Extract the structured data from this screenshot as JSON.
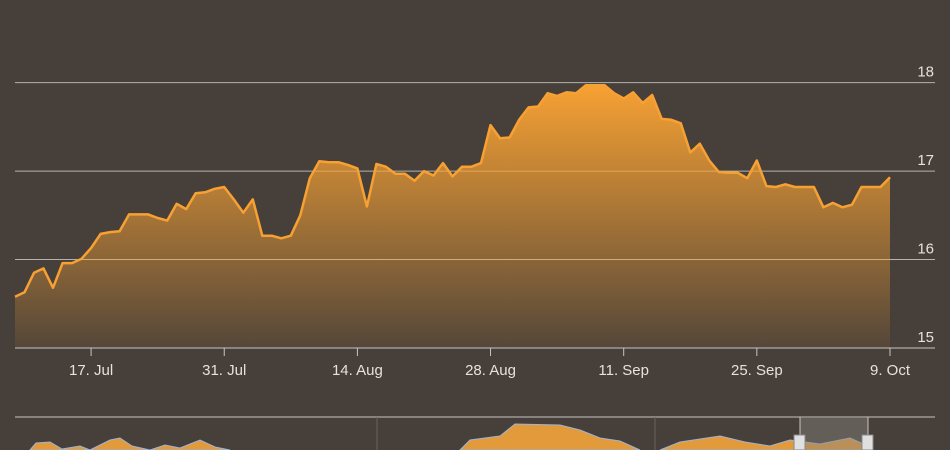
{
  "chart_data": {
    "type": "area",
    "x": [
      "9. Jul",
      "10. Jul",
      "11. Jul",
      "12. Jul",
      "13. Jul",
      "14. Jul",
      "15. Jul",
      "16. Jul",
      "17. Jul",
      "18. Jul",
      "19. Jul",
      "20. Jul",
      "21. Jul",
      "22. Jul",
      "23. Jul",
      "24. Jul",
      "25. Jul",
      "26. Jul",
      "27. Jul",
      "28. Jul",
      "29. Jul",
      "30. Jul",
      "31. Jul",
      "1. Aug",
      "2. Aug",
      "3. Aug",
      "4. Aug",
      "5. Aug",
      "6. Aug",
      "7. Aug",
      "8. Aug",
      "9. Aug",
      "10. Aug",
      "11. Aug",
      "12. Aug",
      "13. Aug",
      "14. Aug",
      "15. Aug",
      "16. Aug",
      "17. Aug",
      "18. Aug",
      "19. Aug",
      "20. Aug",
      "21. Aug",
      "22. Aug",
      "23. Aug",
      "24. Aug",
      "25. Aug",
      "26. Aug",
      "27. Aug",
      "28. Aug",
      "29. Aug",
      "30. Aug",
      "31. Aug",
      "1. Sep",
      "2. Sep",
      "3. Sep",
      "4. Sep",
      "5. Sep",
      "6. Sep",
      "7. Sep",
      "8. Sep",
      "9. Sep",
      "10. Sep",
      "11. Sep",
      "12. Sep",
      "13. Sep",
      "14. Sep",
      "15. Sep",
      "16. Sep",
      "17. Sep",
      "18. Sep",
      "19. Sep",
      "20. Sep",
      "21. Sep",
      "22. Sep",
      "23. Sep",
      "24. Sep",
      "25. Sep",
      "26. Sep",
      "27. Sep",
      "28. Sep",
      "29. Sep",
      "30. Sep",
      "1. Oct",
      "2. Oct",
      "3. Oct",
      "4. Oct",
      "5. Oct",
      "6. Oct",
      "7. Oct",
      "8. Oct",
      "9. Oct"
    ],
    "values": [
      15.58,
      15.63,
      15.85,
      15.9,
      15.68,
      15.96,
      15.96,
      16.01,
      16.13,
      16.29,
      16.31,
      16.32,
      16.51,
      16.51,
      16.51,
      16.47,
      16.44,
      16.63,
      16.57,
      16.75,
      16.76,
      16.8,
      16.82,
      16.68,
      16.53,
      16.68,
      16.27,
      16.27,
      16.24,
      16.27,
      16.5,
      16.92,
      17.11,
      17.1,
      17.1,
      17.07,
      17.03,
      16.6,
      17.08,
      17.05,
      16.97,
      16.97,
      16.89,
      17.0,
      16.95,
      17.09,
      16.94,
      17.05,
      17.05,
      17.09,
      17.52,
      17.37,
      17.38,
      17.58,
      17.72,
      17.73,
      17.88,
      17.85,
      17.89,
      17.88,
      17.97,
      17.97,
      17.97,
      17.88,
      17.82,
      17.89,
      17.77,
      17.86,
      17.59,
      17.58,
      17.54,
      17.21,
      17.31,
      17.12,
      16.99,
      16.98,
      16.98,
      16.92,
      17.12,
      16.83,
      16.82,
      16.85,
      16.82,
      16.82,
      16.82,
      16.59,
      16.64,
      16.59,
      16.62,
      16.82,
      16.82,
      16.82,
      16.93
    ],
    "color": "#f7a133",
    "xticks": [
      "17. Jul",
      "31. Jul",
      "14. Aug",
      "28. Aug",
      "11. Sep",
      "25. Sep",
      "9. Oct"
    ],
    "ylim": [
      15,
      18.9
    ],
    "yticks": [
      15,
      16,
      17,
      18
    ],
    "grid": true
  }
}
